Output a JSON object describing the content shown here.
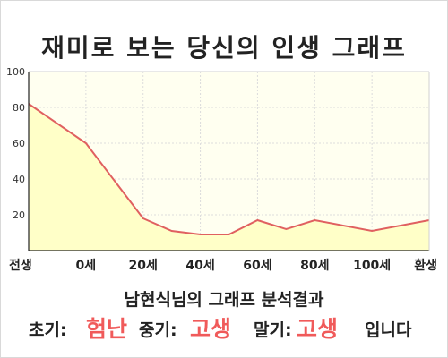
{
  "title": "재미로 보는 당신의 인생 그래프",
  "summary": "남현식님의 그래프 분석결과",
  "result": {
    "early_label": "초기:",
    "early_value": "험난",
    "mid_label": "중기:",
    "mid_value": "고생",
    "late_label": "말기:",
    "late_value": "고생",
    "suffix": "입니다"
  },
  "colors": {
    "line": "#e06060",
    "fill": "#ffffc8",
    "plot_bg": "#fffff0",
    "accent": "#f05a5a"
  },
  "chart_data": {
    "type": "area",
    "x_tick_labels": [
      "전생",
      "0세",
      "20세",
      "40세",
      "60세",
      "80세",
      "100세",
      "환생"
    ],
    "y_ticks": [
      20,
      40,
      60,
      80,
      100
    ],
    "ylim": [
      0,
      100
    ],
    "grid": true,
    "series": [
      {
        "points": [
          [
            0,
            82
          ],
          [
            1,
            60
          ],
          [
            2,
            18
          ],
          [
            2.5,
            11
          ],
          [
            3,
            9
          ],
          [
            3.5,
            9
          ],
          [
            4,
            17
          ],
          [
            4.5,
            12
          ],
          [
            5,
            17
          ],
          [
            6,
            11
          ],
          [
            7,
            17
          ]
        ]
      }
    ]
  }
}
